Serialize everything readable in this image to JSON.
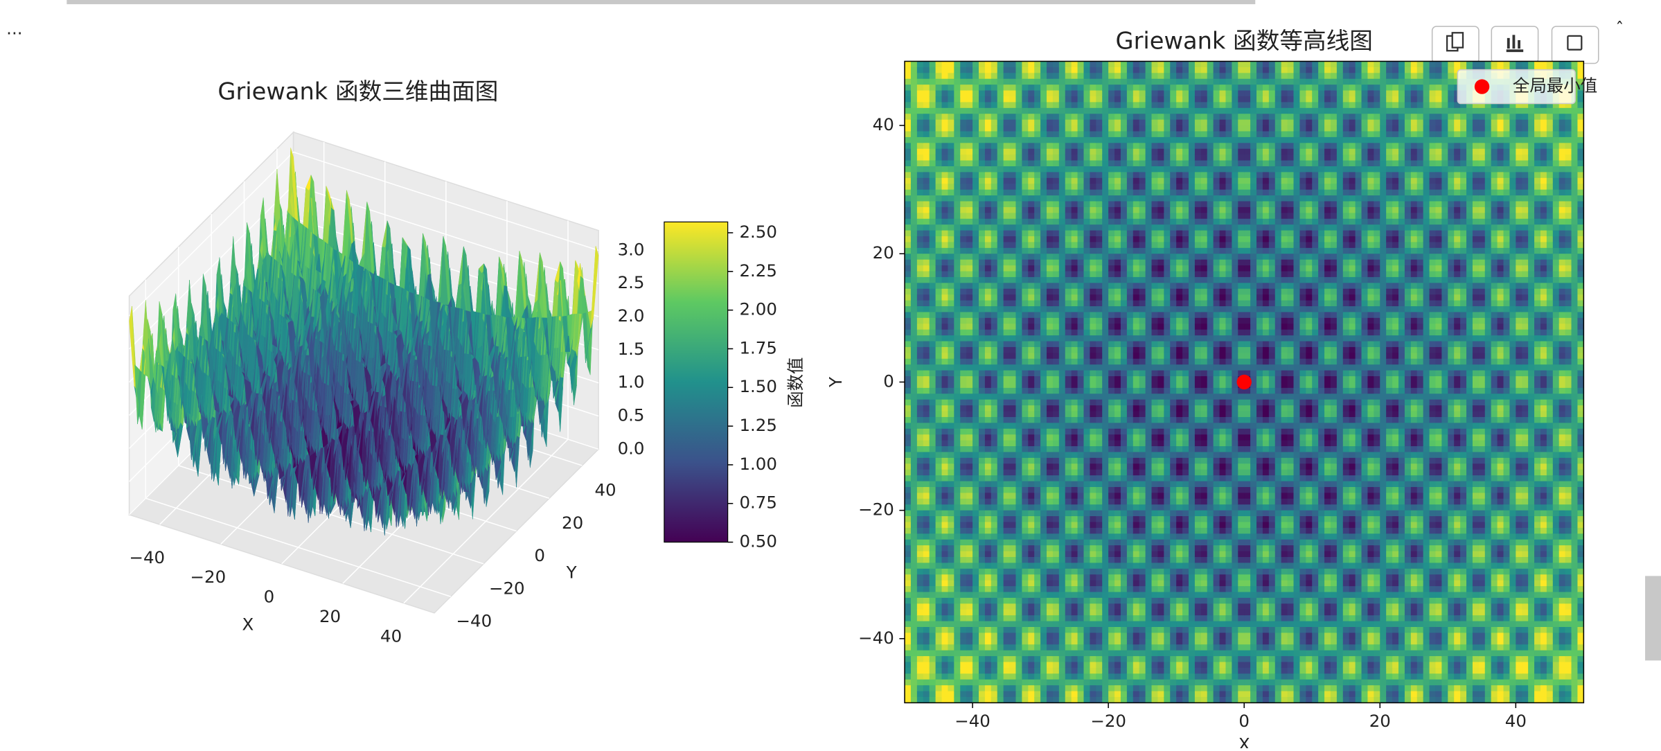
{
  "ui": {
    "ellipsis": "..."
  },
  "chart_data": [
    {
      "type": "surface3d",
      "title": "Griewank 函数三维曲面图",
      "x_label": "X",
      "y_label": "Y",
      "xlim": [
        -50,
        50
      ],
      "ylim": [
        -50,
        50
      ],
      "zlim": [
        0,
        3.3
      ],
      "xticks": [
        {
          "value": -40,
          "label": "−40"
        },
        {
          "value": -20,
          "label": "−20"
        },
        0,
        20,
        40
      ],
      "yticks": [
        {
          "value": -40,
          "label": "−40"
        },
        {
          "value": -20,
          "label": "−20"
        },
        0,
        20,
        40
      ],
      "zticks": [
        {
          "value": 0,
          "label": "0.0"
        },
        {
          "value": 0.5,
          "label": "0.5"
        },
        {
          "value": 1,
          "label": "1.0"
        },
        {
          "value": 1.5,
          "label": "1.5"
        },
        {
          "value": 2,
          "label": "2.0"
        },
        {
          "value": 2.5,
          "label": "2.5"
        },
        {
          "value": 3,
          "label": "3.0"
        }
      ],
      "colormap": "viridis",
      "colorbar": {
        "label": "函数值",
        "lim": [
          0.5,
          2.57
        ],
        "ticks": [
          {
            "value": 0.5,
            "label": "0.50"
          },
          0.75,
          {
            "value": 1,
            "label": "1.00"
          },
          1.25,
          {
            "value": 1.5,
            "label": "1.50"
          },
          1.75,
          {
            "value": 2,
            "label": "2.00"
          },
          2.25,
          {
            "value": 2.5,
            "label": "2.50"
          }
        ]
      }
    },
    {
      "type": "contour",
      "title": "Griewank 函数等高线图",
      "x_label": "X",
      "y_label": "Y",
      "xlim": [
        -50,
        50
      ],
      "ylim": [
        -50,
        50
      ],
      "xticks": [
        {
          "value": -40,
          "label": "−40"
        },
        {
          "value": -20,
          "label": "−20"
        },
        0,
        20,
        40
      ],
      "yticks": [
        {
          "value": -40,
          "label": "−40"
        },
        {
          "value": -20,
          "label": "−20"
        },
        0,
        20,
        40
      ],
      "colormap": "viridis",
      "legend": "upper right",
      "series": [
        {
          "name": "全局最小值",
          "color": "#ff0000",
          "x": [
            0
          ],
          "values": [
            0
          ]
        }
      ]
    }
  ]
}
